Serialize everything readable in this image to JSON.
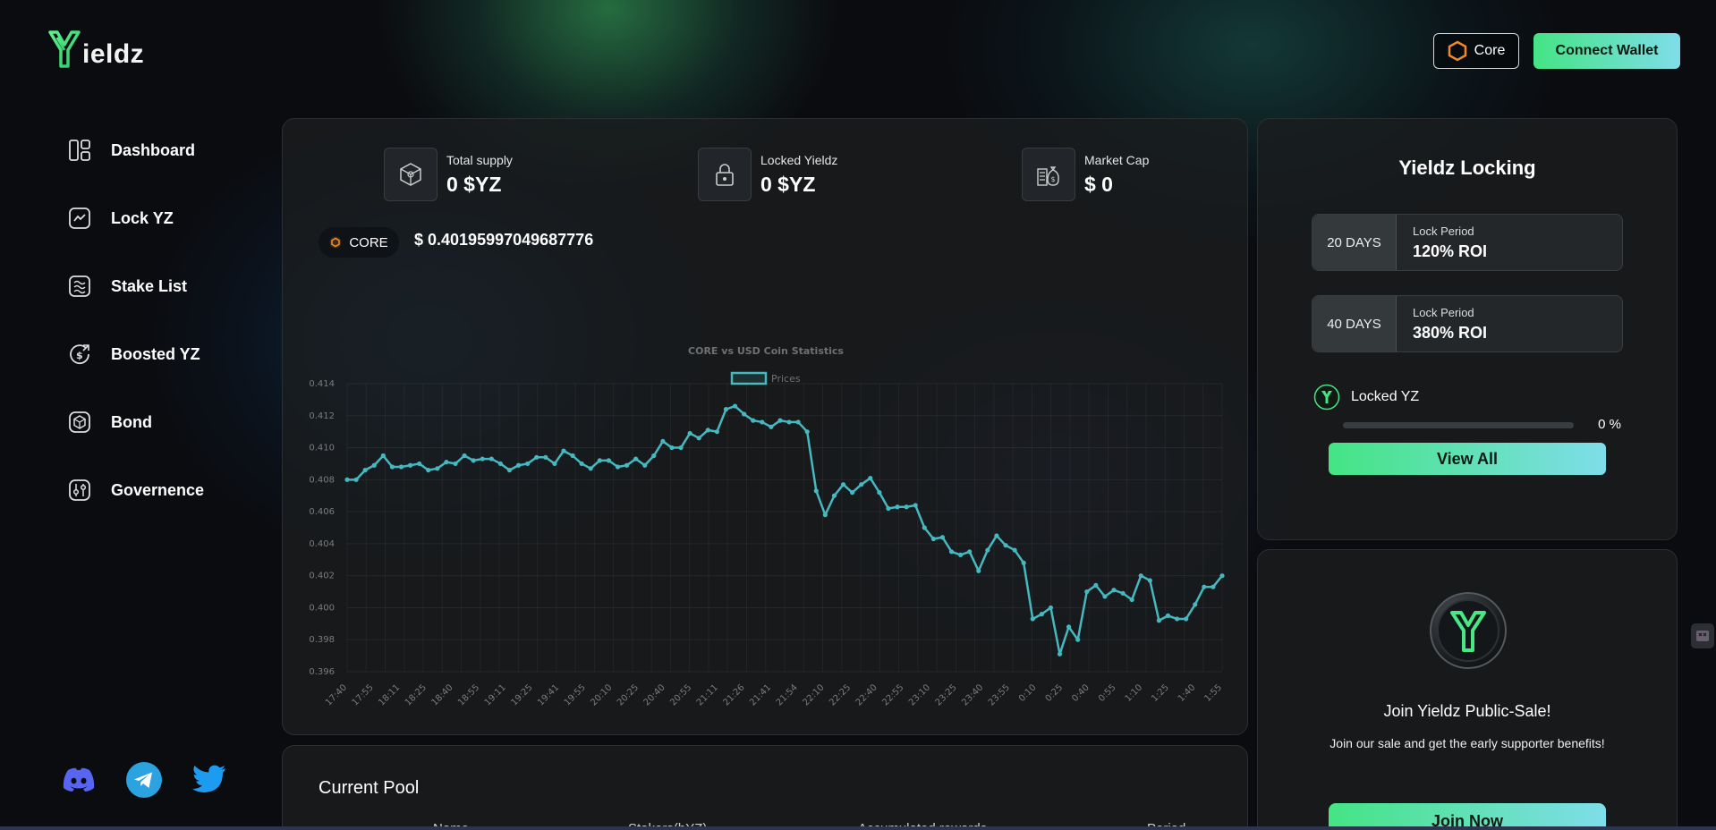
{
  "app": {
    "logo_text": "ieldz"
  },
  "header": {
    "network_label": "Core",
    "connect_label": "Connect Wallet"
  },
  "nav": {
    "items": [
      {
        "label": "Dashboard",
        "icon": "dashboard-icon"
      },
      {
        "label": "Lock YZ",
        "icon": "chart-line-icon"
      },
      {
        "label": "Stake List",
        "icon": "stake-icon"
      },
      {
        "label": "Boosted YZ",
        "icon": "boost-icon"
      },
      {
        "label": "Bond",
        "icon": "bond-icon"
      },
      {
        "label": "Governence",
        "icon": "governance-icon"
      }
    ]
  },
  "socials": [
    {
      "name": "discord-icon",
      "color": "#5865f2"
    },
    {
      "name": "telegram-icon",
      "color": "#2aa3e0"
    },
    {
      "name": "twitter-icon",
      "color": "#1d9bf0"
    }
  ],
  "stats": {
    "total_supply": {
      "label": "Total supply",
      "value": "0 $YZ"
    },
    "locked": {
      "label": "Locked Yieldz",
      "value": "0 $YZ"
    },
    "market_cap": {
      "label": "Market Cap",
      "value": "$ 0"
    }
  },
  "core": {
    "label": "CORE",
    "price": "$ 0.40195997049687776"
  },
  "chart_data": {
    "type": "line",
    "title": "CORE vs USD Coin Statistics",
    "legend": "Prices",
    "legend_position": "top-center",
    "grid": true,
    "ylim": [
      0.396,
      0.414
    ],
    "yticks": [
      0.414,
      0.412,
      0.41,
      0.408,
      0.406,
      0.404,
      0.402,
      0.4,
      0.398,
      0.396
    ],
    "x_tick_labels": [
      "17:40",
      "17:55",
      "18:11",
      "18:25",
      "18:40",
      "18:55",
      "19:11",
      "19:25",
      "19:41",
      "19:55",
      "20:10",
      "20:25",
      "20:40",
      "20:55",
      "21:11",
      "21:26",
      "21:41",
      "21:54",
      "22:10",
      "22:25",
      "22:40",
      "22:55",
      "23:10",
      "23:25",
      "23:40",
      "23:55",
      "0:10",
      "0:25",
      "0:40",
      "0:55",
      "1:10",
      "1:25",
      "1:40",
      "1:55"
    ],
    "series": [
      {
        "name": "Prices",
        "values": [
          0.408,
          0.408,
          0.4086,
          0.4089,
          0.4095,
          0.4088,
          0.4088,
          0.4089,
          0.409,
          0.4086,
          0.4087,
          0.4091,
          0.409,
          0.4095,
          0.4092,
          0.4093,
          0.4093,
          0.409,
          0.4086,
          0.4089,
          0.409,
          0.4094,
          0.4094,
          0.409,
          0.4098,
          0.4095,
          0.409,
          0.4087,
          0.4092,
          0.4092,
          0.4088,
          0.4089,
          0.4093,
          0.4089,
          0.4095,
          0.4104,
          0.41,
          0.41,
          0.4109,
          0.4106,
          0.4111,
          0.411,
          0.4124,
          0.4126,
          0.4121,
          0.4117,
          0.4116,
          0.4113,
          0.4117,
          0.4116,
          0.4116,
          0.411,
          0.4073,
          0.4058,
          0.407,
          0.4077,
          0.4072,
          0.4077,
          0.4081,
          0.4072,
          0.4062,
          0.4063,
          0.4063,
          0.4064,
          0.405,
          0.4043,
          0.4044,
          0.4035,
          0.4033,
          0.4035,
          0.4023,
          0.4036,
          0.4045,
          0.4039,
          0.4036,
          0.4028,
          0.3993,
          0.3996,
          0.4,
          0.3971,
          0.3988,
          0.398,
          0.401,
          0.4014,
          0.4007,
          0.4011,
          0.4009,
          0.4005,
          0.402,
          0.4017,
          0.3992,
          0.3995,
          0.3993,
          0.3993,
          0.4002,
          0.4013,
          0.4013,
          0.402
        ]
      }
    ],
    "line_color": "#46b8bf"
  },
  "pool": {
    "title": "Current Pool",
    "columns": [
      "Name",
      "Stakers(bYZ)",
      "Accumulated rewards",
      "Period"
    ]
  },
  "locking": {
    "title": "Yieldz Locking",
    "options": [
      {
        "days": "20 DAYS",
        "label": "Lock Period",
        "roi": "120% ROI"
      },
      {
        "days": "40 DAYS",
        "label": "Lock Period",
        "roi": "380% ROI"
      }
    ],
    "locked_label": "Locked YZ",
    "progress": 0,
    "progress_text": "0 %",
    "view_all": "View All"
  },
  "sale": {
    "title": "Join Yieldz Public-Sale!",
    "subtitle": "Join our sale and get the early supporter benefits!",
    "button": "Join Now"
  },
  "colors": {
    "accent_green": "#44e484",
    "accent_cyan": "#7fdde9",
    "core_orange": "#f08a24"
  }
}
